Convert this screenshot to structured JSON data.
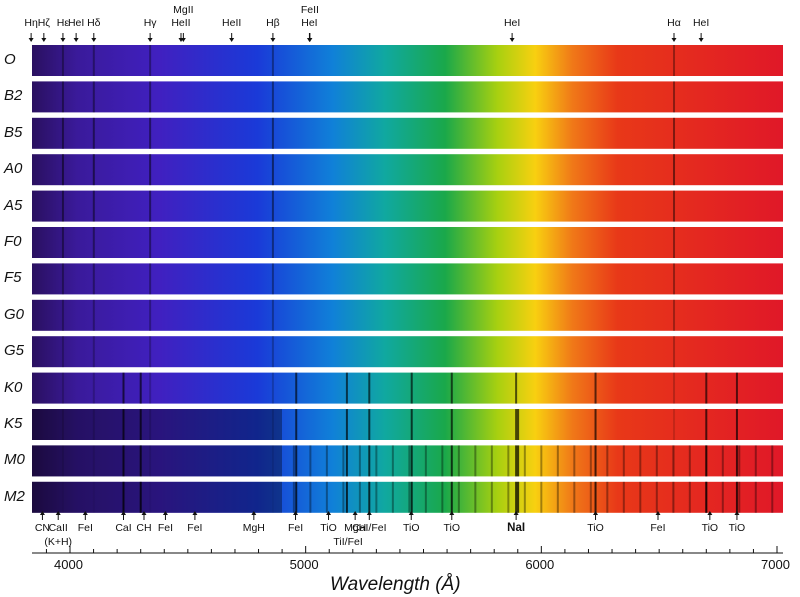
{
  "spectral_types": [
    "O",
    "B2",
    "B5",
    "A0",
    "A5",
    "F0",
    "F5",
    "G0",
    "G5",
    "K0",
    "K5",
    "M0",
    "M2"
  ],
  "top_lines": [
    {
      "text": "Hη",
      "wl": 3835
    },
    {
      "text": "Hζ",
      "wl": 3889
    },
    {
      "text": "Hε",
      "wl": 3970
    },
    {
      "text": "HeI",
      "wl": 4026
    },
    {
      "text": "Hδ",
      "wl": 4101
    },
    {
      "text": "Hγ",
      "wl": 4340
    },
    {
      "text": "MgII",
      "wl": 4481
    },
    {
      "text": "HeII",
      "wl": 4471
    },
    {
      "text": "HeII",
      "wl": 4686
    },
    {
      "text": "Hβ",
      "wl": 4861
    },
    {
      "text": "FeII",
      "wl": 5018
    },
    {
      "text": "HeI",
      "wl": 5016
    },
    {
      "text": "HeI",
      "wl": 5876
    },
    {
      "text": "Hα",
      "wl": 6563
    },
    {
      "text": "HeI",
      "wl": 6678
    }
  ],
  "bottom_lines": [
    {
      "text": "CN",
      "wl": 3883
    },
    {
      "text": "CaII",
      "wl": 3950
    },
    {
      "text": "(K+H)",
      "wl": 3950
    },
    {
      "text": "FeI",
      "wl": 4065
    },
    {
      "text": "CaI",
      "wl": 4227
    },
    {
      "text": "CH",
      "wl": 4314
    },
    {
      "text": "FeI",
      "wl": 4405
    },
    {
      "text": "FeI",
      "wl": 4530
    },
    {
      "text": "MgH",
      "wl": 4780
    },
    {
      "text": "FeI",
      "wl": 4957
    },
    {
      "text": "TiO",
      "wl": 5097
    },
    {
      "text": "MgH",
      "wl": 5210
    },
    {
      "text": "TiI/FeI",
      "wl": 5180
    },
    {
      "text": "CaI/FeI",
      "wl": 5270
    },
    {
      "text": "TiO",
      "wl": 5448
    },
    {
      "text": "TiO",
      "wl": 5620
    },
    {
      "text": "NaI",
      "wl": 5893
    },
    {
      "text": "TiO",
      "wl": 6230
    },
    {
      "text": "FeI",
      "wl": 6495
    },
    {
      "text": "TiO",
      "wl": 6715
    },
    {
      "text": "TiO",
      "wl": 6830
    }
  ],
  "axis": {
    "title": "Wavelength (Å)",
    "ticks": [
      "4000",
      "5000",
      "6000",
      "7000"
    ],
    "range": [
      3800,
      7000
    ]
  },
  "colors": {
    "violet": "#3a1a9a",
    "blue": "#1a3ad8",
    "green": "#1aa84a",
    "yellow": "#f8d010",
    "orange": "#f07818",
    "red": "#e01828",
    "background": "#ffffff"
  }
}
